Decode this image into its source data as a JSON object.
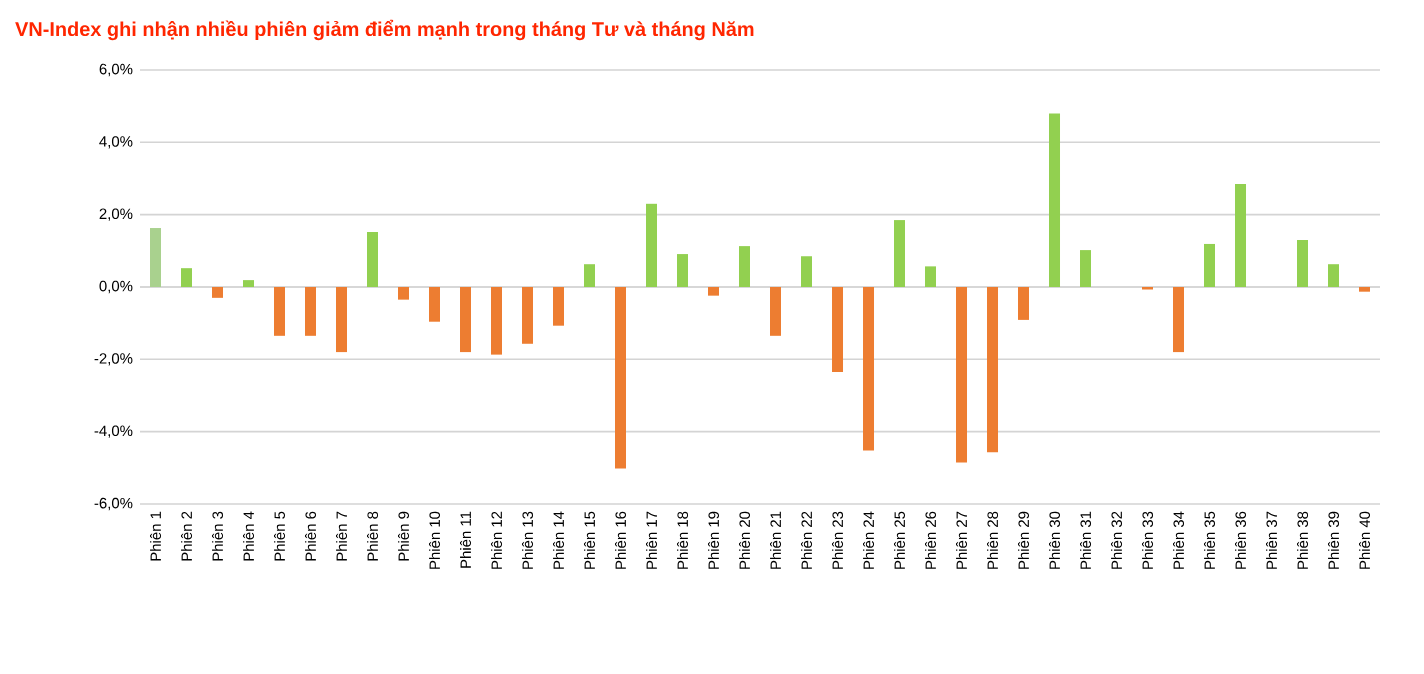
{
  "chart_data": {
    "type": "bar",
    "title": "VN-Index ghi nhận nhiều phiên giảm điểm mạnh trong tháng Tư và tháng Năm",
    "categories": [
      "Phiên 1",
      "Phiên 2",
      "Phiên 3",
      "Phiên 4",
      "Phiên 5",
      "Phiên 6",
      "Phiên 7",
      "Phiên 8",
      "Phiên 9",
      "Phiên 10",
      "Phiên 11",
      "Phiên 12",
      "Phiên 13",
      "Phiên 14",
      "Phiên 15",
      "Phiên 16",
      "Phiên 17",
      "Phiên 18",
      "Phiên 19",
      "Phiên 20",
      "Phiên 21",
      "Phiên 22",
      "Phiên 23",
      "Phiên 24",
      "Phiên 25",
      "Phiên 26",
      "Phiên 27",
      "Phiên 28",
      "Phiên 29",
      "Phiên 30",
      "Phiên 31",
      "Phiên 32",
      "Phiên 33",
      "Phiên 34",
      "Phiên 35",
      "Phiên 36",
      "Phiên 37",
      "Phiên 38",
      "Phiên 39",
      "Phiên 40"
    ],
    "values": [
      1.63,
      0.52,
      -0.3,
      0.19,
      -1.35,
      -1.35,
      -1.8,
      1.52,
      -0.35,
      -0.96,
      -1.8,
      -1.87,
      -1.57,
      -1.07,
      0.63,
      -5.02,
      2.3,
      0.91,
      -0.24,
      1.13,
      -1.35,
      0.85,
      -2.35,
      -4.52,
      1.85,
      0.57,
      -4.85,
      -4.57,
      -0.91,
      4.8,
      1.02,
      0,
      -0.07,
      -1.8,
      1.19,
      2.85,
      0,
      1.3,
      0.63,
      -0.13
    ],
    "colors": [
      "#a9d18e",
      "#92d050",
      "#ed7d31",
      "#92d050",
      "#ed7d31",
      "#ed7d31",
      "#ed7d31",
      "#92d050",
      "#ed7d31",
      "#ed7d31",
      "#ed7d31",
      "#ed7d31",
      "#ed7d31",
      "#ed7d31",
      "#92d050",
      "#ed7d31",
      "#92d050",
      "#92d050",
      "#ed7d31",
      "#92d050",
      "#ed7d31",
      "#92d050",
      "#ed7d31",
      "#ed7d31",
      "#92d050",
      "#92d050",
      "#ed7d31",
      "#ed7d31",
      "#ed7d31",
      "#92d050",
      "#92d050",
      "#92d050",
      "#ed7d31",
      "#ed7d31",
      "#92d050",
      "#92d050",
      "#92d050",
      "#92d050",
      "#92d050",
      "#ed7d31"
    ],
    "ylim": [
      -6,
      6
    ],
    "yticks": [
      {
        "value": -6,
        "label": "-6,0%"
      },
      {
        "value": -4,
        "label": "-4,0%"
      },
      {
        "value": -2,
        "label": "-2,0%"
      },
      {
        "value": 0,
        "label": "0,0%"
      },
      {
        "value": 2,
        "label": "2,0%"
      },
      {
        "value": 4,
        "label": "4,0%"
      },
      {
        "value": 6,
        "label": "6,0%"
      }
    ],
    "grid": "y"
  }
}
